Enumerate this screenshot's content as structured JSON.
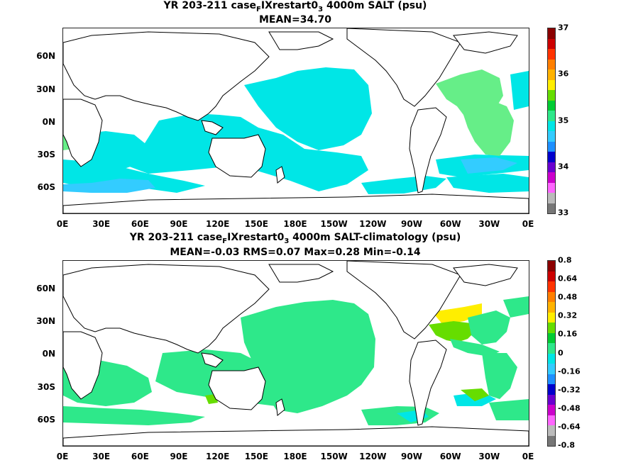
{
  "panels": [
    {
      "title_pre": "YR 203-211 case",
      "title_sub1": "F",
      "title_mid": "IXrestart0",
      "title_sub2": "3",
      "title_post": " 4000m SALT (psu)",
      "stats": "MEAN=34.70",
      "colorbar_labels": [
        "37",
        "36",
        "35",
        "34",
        "33"
      ],
      "colorbar_colors": [
        "#8b0000",
        "#cc0000",
        "#ff3300",
        "#ff7f00",
        "#ffb300",
        "#ffee00",
        "#66dd00",
        "#00cc33",
        "#2ee88a",
        "#00e6e6",
        "#33ccff",
        "#1e90ff",
        "#0000cc",
        "#6a00d0",
        "#cc00cc",
        "#ff66ff",
        "#bbbbbb",
        "#777777"
      ]
    },
    {
      "title_pre": "YR 203-211 case",
      "title_sub1": "F",
      "title_mid": "IXrestart0",
      "title_sub2": "3",
      "title_post": " 4000m SALT-climatology (psu)",
      "stats": "MEAN=-0.03   RMS=0.07   Max=0.28   Min=-0.14",
      "colorbar_labels": [
        "0.8",
        "0.64",
        "0.48",
        "0.32",
        "0.16",
        "0",
        "-0.16",
        "-0.32",
        "-0.48",
        "-0.64",
        "-0.8"
      ],
      "colorbar_colors": [
        "#8b0000",
        "#cc0000",
        "#ff3300",
        "#ff7f00",
        "#ffb300",
        "#ffee00",
        "#66dd00",
        "#00cc33",
        "#2ee88a",
        "#00e6e6",
        "#33ccff",
        "#1e90ff",
        "#0000cc",
        "#6a00d0",
        "#cc00cc",
        "#ff66ff",
        "#bbbbbb",
        "#777777"
      ]
    }
  ],
  "lat_labels": [
    "60N",
    "30N",
    "0N",
    "30S",
    "60S"
  ],
  "lon_labels": [
    "0E",
    "30E",
    "60E",
    "90E",
    "120E",
    "150E",
    "180E",
    "150W",
    "120W",
    "90W",
    "60W",
    "30W",
    "0E"
  ]
}
